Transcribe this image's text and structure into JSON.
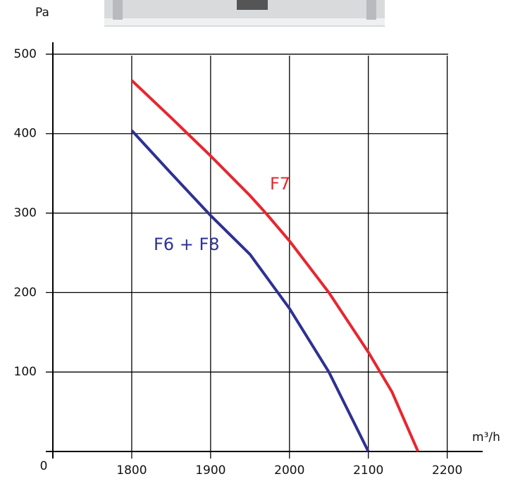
{
  "chart_data": {
    "type": "line",
    "y_label": "Pa",
    "x_label": "m³/h",
    "origin_label": "0",
    "xlim": [
      1700,
      2245
    ],
    "ylim": [
      0,
      515
    ],
    "xticks": [
      1800,
      1900,
      2000,
      2100,
      2200
    ],
    "yticks": [
      100,
      200,
      300,
      400,
      500
    ],
    "grid": true,
    "series": [
      {
        "name": "F7",
        "color": "#e8262e",
        "x": [
          1800,
          1850,
          1900,
          1950,
          1970,
          2000,
          2050,
          2100,
          2130,
          2163
        ],
        "values": [
          467,
          420,
          372,
          322,
          300,
          265,
          200,
          125,
          75,
          0
        ]
      },
      {
        "name": "F6 + F8",
        "color": "#2e3192",
        "x": [
          1800,
          1850,
          1900,
          1950,
          2000,
          2050,
          2100
        ],
        "values": [
          404,
          350,
          297,
          248,
          180,
          100,
          0
        ]
      }
    ]
  }
}
